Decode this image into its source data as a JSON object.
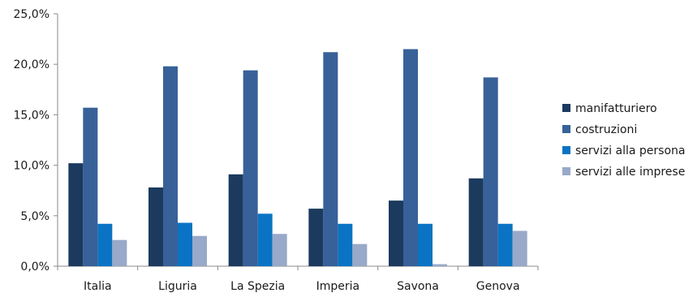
{
  "chart_data": {
    "type": "bar",
    "categories": [
      "Italia",
      "Liguria",
      "La Spezia",
      "Imperia",
      "Savona",
      "Genova"
    ],
    "series": [
      {
        "name": "manifatturiero",
        "values": [
          10.2,
          7.8,
          9.1,
          5.7,
          6.5,
          8.7
        ],
        "color": "#1c3a5e"
      },
      {
        "name": "costruzioni",
        "values": [
          15.7,
          19.8,
          19.4,
          21.2,
          21.5,
          18.7
        ],
        "color": "#376198"
      },
      {
        "name": "servizi alla persona",
        "values": [
          4.2,
          4.3,
          5.2,
          4.2,
          4.2,
          4.2
        ],
        "color": "#0b73c4"
      },
      {
        "name": "servizi alle imprese",
        "values": [
          2.6,
          3.0,
          3.2,
          2.2,
          0.2,
          3.5
        ],
        "color": "#98a9c9"
      }
    ],
    "y_ticks": [
      "0,0%",
      "5,0%",
      "10,0%",
      "15,0%",
      "20,0%",
      "25,0%"
    ],
    "ylim": [
      0,
      25
    ],
    "legend_position": "right",
    "grid": false
  }
}
